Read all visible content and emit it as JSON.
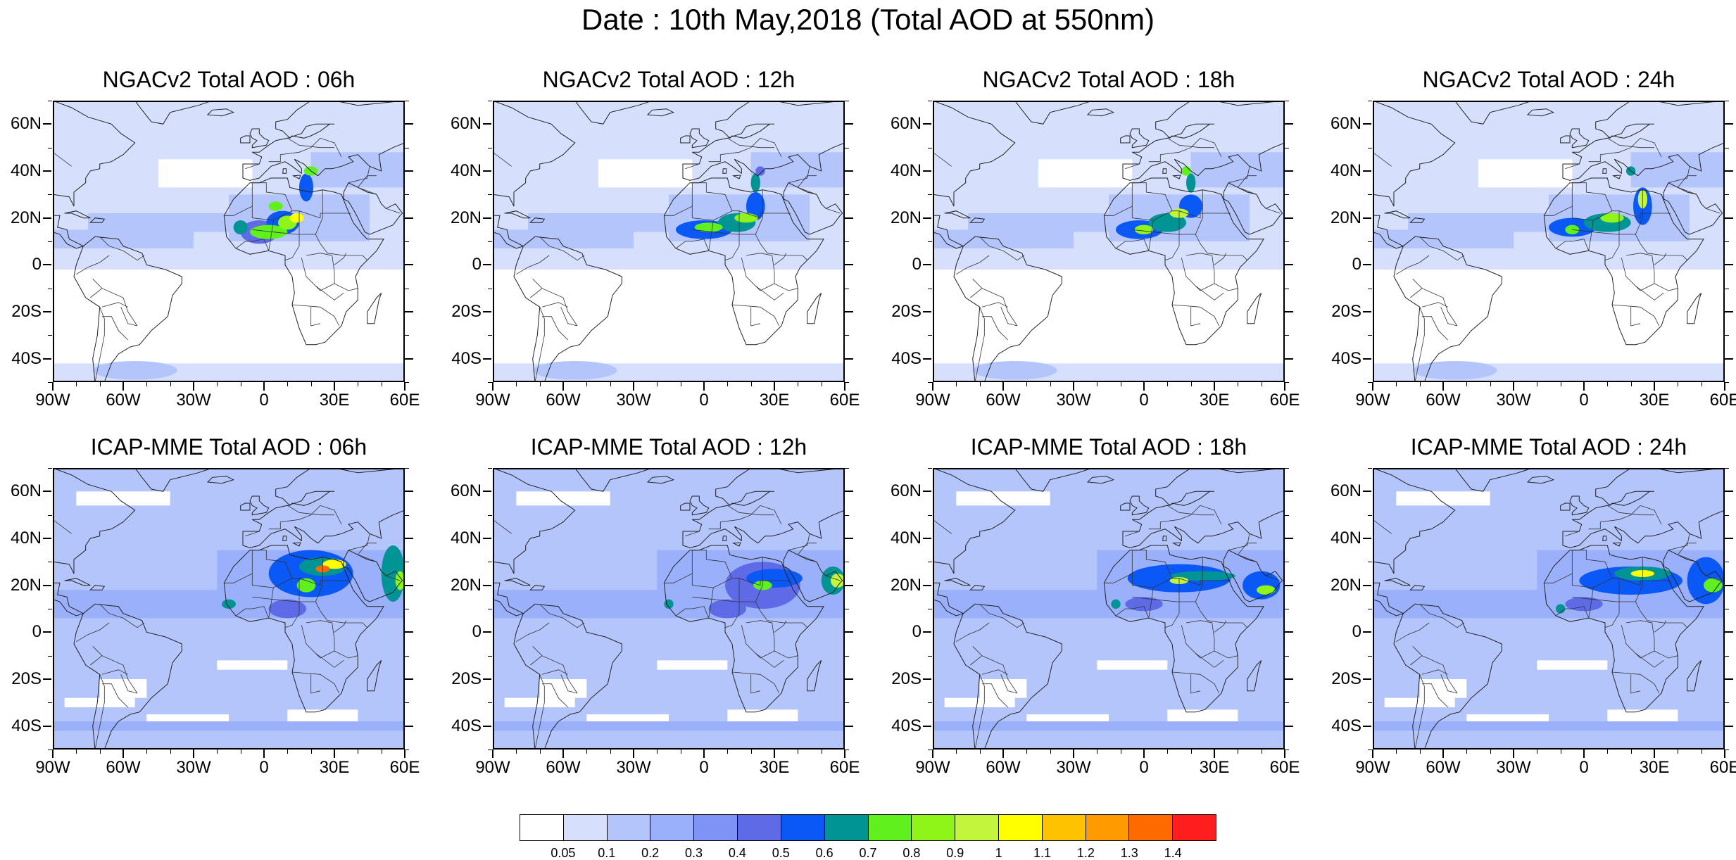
{
  "title": "Date : 10th May,2018 (Total AOD at 550nm)",
  "panels": [
    {
      "title": "NGACv2 Total AOD : 06h",
      "model": "NGACv2",
      "hour": 6
    },
    {
      "title": "NGACv2 Total AOD : 12h",
      "model": "NGACv2",
      "hour": 12
    },
    {
      "title": "NGACv2 Total AOD : 18h",
      "model": "NGACv2",
      "hour": 18
    },
    {
      "title": "NGACv2 Total AOD : 24h",
      "model": "NGACv2",
      "hour": 24
    },
    {
      "title": "ICAP-MME Total AOD : 06h",
      "model": "ICAP-MME",
      "hour": 6
    },
    {
      "title": "ICAP-MME Total AOD : 12h",
      "model": "ICAP-MME",
      "hour": 12
    },
    {
      "title": "ICAP-MME Total AOD : 18h",
      "model": "ICAP-MME",
      "hour": 18
    },
    {
      "title": "ICAP-MME Total AOD : 24h",
      "model": "ICAP-MME",
      "hour": 24
    }
  ],
  "lat_labels": [
    "60N",
    "40N",
    "20N",
    "0",
    "20S",
    "40S"
  ],
  "lon_labels": [
    "90W",
    "60W",
    "30W",
    "0",
    "30E",
    "60E"
  ],
  "extent": {
    "lon": [
      -90,
      60
    ],
    "lat": [
      -50,
      70
    ]
  },
  "colorbar": {
    "colors": [
      "#ffffff",
      "#d6e0fd",
      "#b4c5fb",
      "#9ab0fa",
      "#7f92f5",
      "#5f6ae6",
      "#0a58f5",
      "#009494",
      "#5ff01e",
      "#8ff518",
      "#c2f53c",
      "#ffff00",
      "#ffc200",
      "#ff9a00",
      "#ff6a00",
      "#ff1e1e"
    ],
    "labels": [
      "0.05",
      "0.1",
      "0.2",
      "0.3",
      "0.4",
      "0.5",
      "0.6",
      "0.7",
      "0.8",
      "0.9",
      "1",
      "1.1",
      "1.2",
      "1.3",
      "1.4"
    ]
  }
}
